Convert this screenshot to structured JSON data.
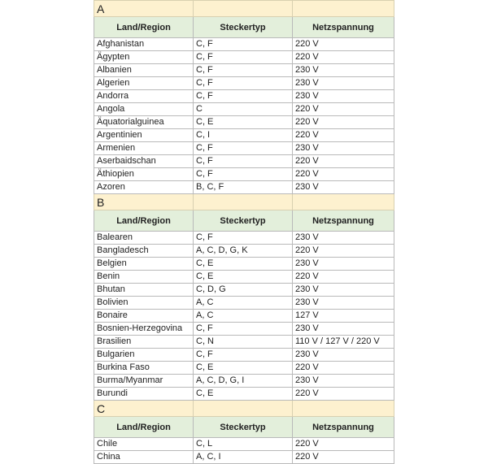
{
  "sections": [
    {
      "letter": "A",
      "header": [
        "Land/Region",
        "Steckertyp",
        "Netzspannung"
      ],
      "rows": [
        [
          "Afghanistan",
          "C, F",
          "220 V"
        ],
        [
          "Ägypten",
          "C, F",
          "220 V"
        ],
        [
          "Albanien",
          "C, F",
          "230 V"
        ],
        [
          "Algerien",
          "C, F",
          "230 V"
        ],
        [
          "Andorra",
          "C, F",
          "230 V"
        ],
        [
          "Angola",
          "C",
          "220 V"
        ],
        [
          "Äquatorialguinea",
          "C, E",
          "220 V"
        ],
        [
          "Argentinien",
          "C, I",
          "220 V"
        ],
        [
          "Armenien",
          "C, F",
          "230 V"
        ],
        [
          "Aserbaidschan",
          "C, F",
          "220 V"
        ],
        [
          "Äthiopien",
          "C, F",
          "220 V"
        ],
        [
          "Azoren",
          "B, C, F",
          "230 V"
        ]
      ]
    },
    {
      "letter": "B",
      "header": [
        "Land/Region",
        "Steckertyp",
        "Netzspannung"
      ],
      "rows": [
        [
          "Balearen",
          "C, F",
          "230 V"
        ],
        [
          "Bangladesch",
          "A, C, D, G, K",
          "220 V"
        ],
        [
          "Belgien",
          "C, E",
          "230 V"
        ],
        [
          "Benin",
          "C, E",
          "220 V"
        ],
        [
          "Bhutan",
          "C, D, G",
          "230 V"
        ],
        [
          "Bolivien",
          "A, C",
          "230 V"
        ],
        [
          "Bonaire",
          "A, C",
          "127 V"
        ],
        [
          "Bosnien-Herzegovina",
          "C, F",
          "230 V"
        ],
        [
          "Brasilien",
          "C, N",
          "110 V / 127 V / 220 V"
        ],
        [
          "Bulgarien",
          "C, F",
          "230 V"
        ],
        [
          "Burkina Faso",
          "C, E",
          "220 V"
        ],
        [
          "Burma/Myanmar",
          "A, C, D, G, I",
          "230 V"
        ],
        [
          "Burundi",
          "C, E",
          "220 V"
        ]
      ]
    },
    {
      "letter": "C",
      "header": [
        "Land/Region",
        "Steckertyp",
        "Netzspannung"
      ],
      "rows": [
        [
          "Chile",
          "C, L",
          "220 V"
        ],
        [
          "China",
          "A, C, I",
          "220 V"
        ]
      ]
    }
  ]
}
